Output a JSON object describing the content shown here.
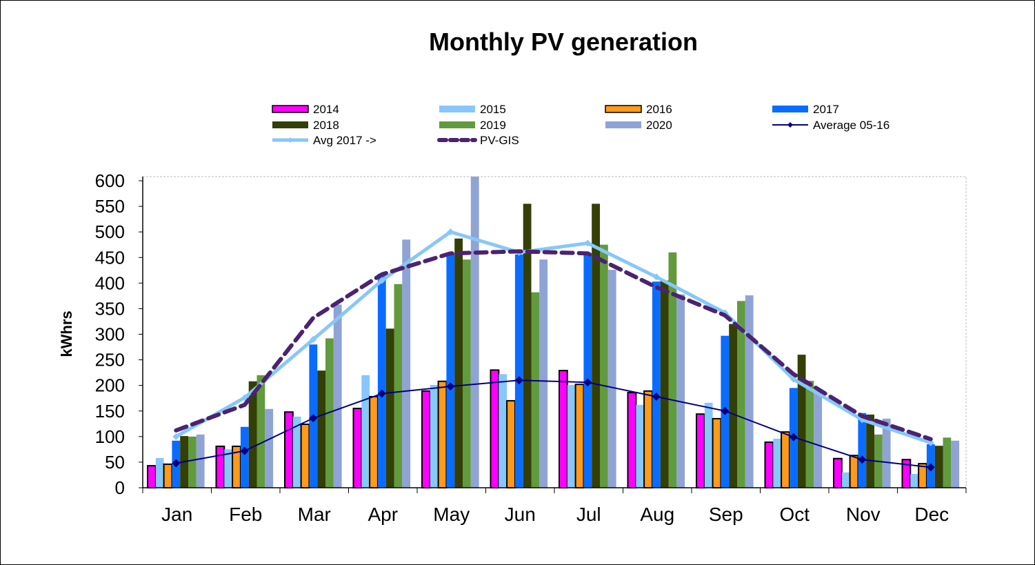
{
  "chart_data": {
    "type": "bar",
    "title": "Monthly PV generation",
    "xlabel": "",
    "ylabel": "kWhrs",
    "ylim": [
      0,
      600
    ],
    "yticks": [
      0,
      50,
      100,
      150,
      200,
      250,
      300,
      350,
      400,
      450,
      500,
      550,
      600
    ],
    "grid": false,
    "legend_position": "top",
    "categories": [
      "Jan",
      "Feb",
      "Mar",
      "Apr",
      "May",
      "Jun",
      "Jul",
      "Aug",
      "Sep",
      "Oct",
      "Nov",
      "Dec"
    ],
    "series": [
      {
        "name": "2014",
        "kind": "bar",
        "color": "#FF00FF",
        "outlined": true,
        "values": [
          43,
          81,
          148,
          155,
          189,
          230,
          229,
          186,
          144,
          89,
          57,
          55
        ]
      },
      {
        "name": "2015",
        "kind": "bar",
        "color": "#87C7FA",
        "outlined": false,
        "values": [
          58,
          75,
          139,
          220,
          201,
          222,
          201,
          162,
          166,
          96,
          30,
          27
        ]
      },
      {
        "name": "2016",
        "kind": "bar",
        "color": "#FF9A1A",
        "outlined": true,
        "values": [
          46,
          81,
          124,
          178,
          208,
          170,
          202,
          189,
          135,
          109,
          63,
          47
        ]
      },
      {
        "name": "2017",
        "kind": "bar",
        "color": "#0A6CFF",
        "outlined": false,
        "values": [
          92,
          119,
          280,
          418,
          458,
          456,
          456,
          403,
          297,
          195,
          146,
          85
        ]
      },
      {
        "name": "2018",
        "kind": "bar",
        "color": "#333F06",
        "outlined": false,
        "values": [
          101,
          208,
          229,
          311,
          487,
          555,
          555,
          405,
          320,
          260,
          143,
          82
        ]
      },
      {
        "name": "2019",
        "kind": "bar",
        "color": "#629A3E",
        "outlined": false,
        "values": [
          100,
          220,
          292,
          398,
          446,
          382,
          475,
          460,
          365,
          209,
          104,
          98
        ]
      },
      {
        "name": "2020",
        "kind": "bar",
        "color": "#8FA3D5",
        "outlined": false,
        "values": [
          104,
          154,
          358,
          485,
          610,
          446,
          426,
          378,
          376,
          189,
          135,
          92
        ]
      },
      {
        "name": "Average 05-16",
        "kind": "line",
        "color": "#000080",
        "marker": "diamond",
        "values": [
          48,
          72,
          136,
          184,
          198,
          210,
          206,
          178,
          150,
          99,
          55,
          40
        ]
      },
      {
        "name": "Avg 2017 ->",
        "kind": "line",
        "color": "#87C7FA",
        "marker": "diamond",
        "values": [
          100,
          176,
          290,
          405,
          500,
          460,
          478,
          412,
          342,
          212,
          133,
          88
        ]
      },
      {
        "name": "PV-GIS",
        "kind": "line",
        "color": "#4B2370",
        "dashed": true,
        "values": [
          112,
          162,
          332,
          417,
          458,
          462,
          458,
          392,
          337,
          222,
          140,
          95
        ]
      }
    ]
  }
}
